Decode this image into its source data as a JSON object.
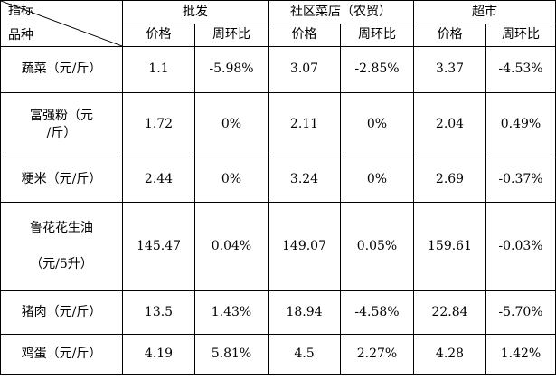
{
  "header": {
    "corner_top": "指标",
    "corner_bottom": "品种",
    "groups": [
      "批发",
      "社区菜店（农贸）",
      "超市"
    ],
    "sub": [
      "价格",
      "周环比",
      "价格",
      "周环比",
      "价格",
      "周环比"
    ]
  },
  "rows": [
    {
      "name": "蔬菜（元/斤）",
      "cells": [
        "1.1",
        "-5.98%",
        "3.07",
        "-2.85%",
        "3.37",
        "-4.53%"
      ]
    },
    {
      "name_line1": "富强粉（元",
      "name_line2": "/斤）",
      "cells": [
        "1.72",
        "0%",
        "2.11",
        "0%",
        "2.04",
        "0.49%"
      ]
    },
    {
      "name": "粳米（元/斤）",
      "cells": [
        "2.44",
        "0%",
        "3.24",
        "0%",
        "2.69",
        "-0.37%"
      ]
    },
    {
      "name_line1": "鲁花花生油",
      "name_line2": "（元/5升）",
      "cells": [
        "145.47",
        "0.04%",
        "149.07",
        "0.05%",
        "159.61",
        "-0.03%"
      ]
    },
    {
      "name": "猪肉（元/斤）",
      "cells": [
        "13.5",
        "1.43%",
        "18.94",
        "-4.58%",
        "22.84",
        "-5.70%"
      ]
    },
    {
      "name": "鸡蛋（元/斤）",
      "cells": [
        "4.19",
        "5.81%",
        "4.5",
        "2.27%",
        "4.28",
        "1.42%"
      ]
    }
  ]
}
